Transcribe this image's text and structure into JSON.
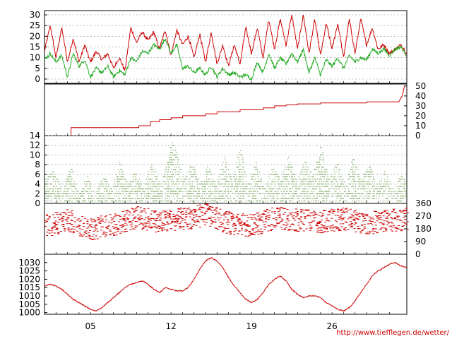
{
  "footer_url": "http://www.tiefflegen.de/wetter/",
  "colors": {
    "temperature": "#cc0000",
    "dewpoint": "#22aa22",
    "precipitation": "#cc0000",
    "wind_speed": "#4f8a2a",
    "wind_direction": "#cc0000",
    "pressure": "#cc0000",
    "grid": "#9a9a9a",
    "frame": "#000000"
  },
  "chart_data": [
    {
      "type": "line",
      "panel": "temperature",
      "ylim": [
        -2,
        32
      ],
      "yticks": [
        0,
        5,
        10,
        15,
        20,
        25,
        30
      ],
      "grid": true,
      "tick_side": "left",
      "x_range_days": [
        0,
        31.5
      ],
      "series": [
        {
          "key": "temp",
          "x_days": [
            0,
            0.5,
            1,
            1.5,
            2,
            2.5,
            3,
            3.5,
            4,
            4.5,
            5,
            5.5,
            6,
            6.5,
            7,
            7.5,
            8,
            8.5,
            9,
            9.5,
            10,
            10.5,
            11,
            11.5,
            12,
            12.5,
            13,
            13.5,
            14,
            14.5,
            15,
            15.5,
            16,
            16.5,
            17,
            17.5,
            18,
            18.5,
            19,
            19.5,
            20,
            20.5,
            21,
            21.5,
            22,
            22.5,
            23,
            23.5,
            24,
            24.5,
            25,
            25.5,
            26,
            26.5,
            27,
            27.5,
            28,
            28.5,
            29,
            29.5,
            30,
            30.5,
            31,
            31.5
          ],
          "values": [
            13,
            25,
            10,
            24,
            8,
            19,
            8,
            16,
            8,
            13,
            9,
            12,
            5,
            10,
            4,
            24,
            17,
            22,
            18,
            22,
            14,
            23,
            11,
            23,
            16,
            20,
            10,
            21,
            8,
            22,
            7,
            16,
            6,
            16,
            7,
            24,
            12,
            24,
            10,
            28,
            14,
            28,
            16,
            30,
            14,
            30,
            12,
            28,
            11,
            26,
            14,
            26,
            10,
            28,
            12,
            28,
            16,
            24,
            14,
            16,
            12,
            14,
            16,
            12
          ]
        },
        {
          "key": "dewpoint",
          "x_days": [
            0,
            0.5,
            1,
            1.5,
            2,
            2.5,
            3,
            3.5,
            4,
            4.5,
            5,
            5.5,
            6,
            6.5,
            7,
            7.5,
            8,
            8.5,
            9,
            9.5,
            10,
            10.5,
            11,
            11.5,
            12,
            12.5,
            13,
            13.5,
            14,
            14.5,
            15,
            15.5,
            16,
            16.5,
            17,
            17.5,
            18,
            18.5,
            19,
            19.5,
            20,
            20.5,
            21,
            21.5,
            22,
            22.5,
            23,
            23.5,
            24,
            24.5,
            25,
            25.5,
            26,
            26.5,
            27,
            27.5,
            28,
            28.5,
            29,
            29.5,
            30,
            30.5,
            31,
            31.5
          ],
          "values": [
            9,
            12,
            8,
            11,
            1,
            12,
            6,
            9,
            1,
            5,
            3,
            6,
            1,
            4,
            2,
            10,
            8,
            13,
            12,
            16,
            14,
            19,
            12,
            16,
            5,
            6,
            3,
            5,
            2,
            6,
            1,
            5,
            2,
            3,
            1,
            2,
            0,
            8,
            3,
            12,
            5,
            10,
            7,
            12,
            8,
            14,
            3,
            10,
            2,
            9,
            6,
            10,
            5,
            11,
            8,
            10,
            9,
            14,
            12,
            14,
            11,
            14,
            15,
            11
          ]
        }
      ]
    },
    {
      "type": "area",
      "panel": "precipitation",
      "ylim": [
        0,
        52
      ],
      "yticks": [
        0,
        10,
        20,
        30,
        40,
        50
      ],
      "grid": false,
      "tick_side": "right",
      "x_range_days": [
        0,
        31.5
      ],
      "series": [
        {
          "key": "precip_cumulative",
          "x_days": [
            0,
            2.3,
            2.31,
            8.2,
            8.21,
            9.2,
            9.21,
            10.0,
            10.01,
            11.0,
            11.01,
            12.0,
            12.01,
            13.0,
            14.0,
            14.01,
            15.0,
            15.01,
            17.0,
            17.01,
            19.0,
            19.01,
            20.0,
            20.01,
            21.0,
            21.01,
            22.0,
            22.01,
            24.0,
            24.01,
            28.0,
            28.01,
            30.8,
            31.1,
            31.3
          ],
          "values": [
            0,
            0,
            8,
            8,
            10,
            10,
            14,
            14,
            16,
            16,
            18,
            18,
            20,
            20,
            20,
            22,
            22,
            24,
            24,
            26,
            26,
            28,
            28,
            30,
            30,
            31,
            31,
            32,
            32,
            33,
            33,
            34,
            34,
            40,
            50
          ]
        }
      ]
    },
    {
      "type": "scatter",
      "panel": "wind_speed",
      "ylim": [
        0,
        14
      ],
      "yticks": [
        0,
        2,
        4,
        6,
        8,
        10,
        12,
        14
      ],
      "grid": true,
      "tick_side": "left",
      "x_range_days": [
        0,
        31.5
      ],
      "series": [
        {
          "key": "wind_envelope",
          "x_days": [
            0,
            0.8,
            1.6,
            2.3,
            3.0,
            3.7,
            4.4,
            5.1,
            5.8,
            6.5,
            7.2,
            7.9,
            8.6,
            9.3,
            10.0,
            10.7,
            11.0,
            11.4,
            12.1,
            12.8,
            13.5,
            14.2,
            14.9,
            15.6,
            16.3,
            17.0,
            17.7,
            18.4,
            19.1,
            19.8,
            20.5,
            21.2,
            21.9,
            22.6,
            23.3,
            24.0,
            24.7,
            25.4,
            26.1,
            26.8,
            27.5,
            28.2,
            28.9,
            29.6,
            30.3,
            31.0,
            31.5
          ],
          "values": [
            5,
            7,
            3,
            8,
            2,
            6,
            2,
            6,
            3,
            9,
            4,
            7,
            3,
            9,
            4,
            9,
            13,
            11,
            5,
            9,
            4,
            8,
            4,
            10,
            5,
            12,
            4,
            9,
            3,
            8,
            5,
            10,
            5,
            9,
            6,
            12,
            5,
            9,
            4,
            10,
            5,
            8,
            4,
            7,
            3,
            6,
            4
          ]
        }
      ]
    },
    {
      "type": "scatter",
      "panel": "wind_direction",
      "ylim": [
        0,
        360
      ],
      "yticks": [
        0,
        90,
        180,
        270,
        360
      ],
      "grid": false,
      "tick_side": "right",
      "x_range_days": [
        0,
        31.5
      ],
      "series": [
        {
          "key": "wind_dir_bands_deg",
          "x_days": [
            0,
            2,
            4,
            6,
            8,
            10,
            12,
            14,
            16,
            18,
            20,
            22,
            24,
            26,
            28,
            30,
            31.5
          ],
          "values": [
            200,
            240,
            180,
            210,
            260,
            230,
            250,
            280,
            220,
            200,
            260,
            240,
            230,
            250,
            220,
            240,
            250
          ]
        }
      ]
    },
    {
      "type": "line",
      "panel": "pressure",
      "ylim": [
        999,
        1035
      ],
      "yticks": [
        1000,
        1005,
        1010,
        1015,
        1020,
        1025,
        1030
      ],
      "grid": false,
      "tick_side": "left",
      "x_range_days": [
        0,
        31.5
      ],
      "series": [
        {
          "key": "pressure",
          "x_days": [
            0,
            0.5,
            1,
            1.5,
            2,
            2.5,
            3,
            3.5,
            4,
            4.5,
            5,
            5.5,
            6,
            6.5,
            7,
            7.5,
            8,
            8.5,
            9,
            9.5,
            10,
            10.5,
            11,
            11.5,
            12,
            12.5,
            13,
            13.5,
            14,
            14.5,
            15,
            15.5,
            16,
            16.5,
            17,
            17.5,
            18,
            18.5,
            19,
            19.5,
            20,
            20.5,
            21,
            21.5,
            22,
            22.5,
            23,
            23.5,
            24,
            24.5,
            25,
            25.5,
            26,
            26.5,
            27,
            27.5,
            28,
            28.5,
            29,
            29.5,
            30,
            30.5,
            31,
            31.5
          ],
          "values": [
            1016,
            1017,
            1016,
            1014,
            1011,
            1008,
            1006,
            1004,
            1002,
            1001,
            1003,
            1006,
            1009,
            1012,
            1015,
            1017,
            1018,
            1019,
            1017,
            1014,
            1012,
            1015,
            1014,
            1013,
            1013,
            1015,
            1020,
            1026,
            1031,
            1033,
            1031,
            1027,
            1021,
            1016,
            1012,
            1008,
            1006,
            1008,
            1012,
            1017,
            1020,
            1022,
            1019,
            1014,
            1011,
            1009,
            1010,
            1010,
            1009,
            1006,
            1004,
            1002,
            1001,
            1003,
            1007,
            1012,
            1017,
            1022,
            1025,
            1027,
            1029,
            1030,
            1028,
            1027
          ]
        }
      ]
    }
  ],
  "x_axis": {
    "tick_labels": [
      {
        "day": 4,
        "label": "05"
      },
      {
        "day": 11,
        "label": "12"
      },
      {
        "day": 18,
        "label": "19"
      },
      {
        "day": 25,
        "label": "26"
      }
    ]
  }
}
